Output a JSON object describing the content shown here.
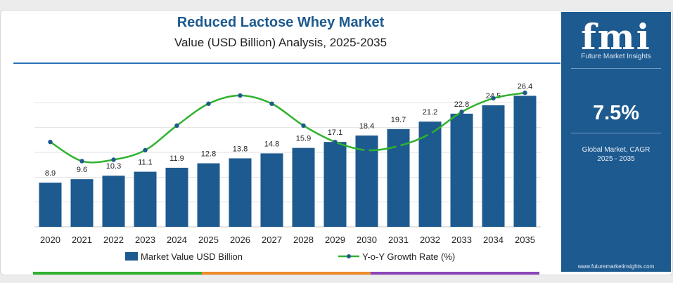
{
  "header": {
    "title": "Reduced Lactose Whey Market",
    "subtitle": "Value (USD Billion) Analysis, 2025-2035"
  },
  "sidebar": {
    "logo_text": "fmi",
    "logo_subtext": "Future Market Insights",
    "cagr_value": "7.5%",
    "cagr_label": "Global Market, CAGR 2025 - 2035",
    "website": "www.futuremarketinsights.com",
    "background_color": "#1d5a8f"
  },
  "chart_data": {
    "type": "bar",
    "title": "Reduced Lactose Whey Market",
    "subtitle": "Value (USD Billion) Analysis, 2025-2035",
    "categories": [
      "2020",
      "2021",
      "2022",
      "2023",
      "2024",
      "2025",
      "2026",
      "2027",
      "2028",
      "2029",
      "2030",
      "2031",
      "2032",
      "2033",
      "2034",
      "2035"
    ],
    "series": [
      {
        "name": "Market Value USD Billion",
        "type": "bar",
        "color": "#1d5a8f",
        "values": [
          8.9,
          9.6,
          10.3,
          11.1,
          11.9,
          12.8,
          13.8,
          14.8,
          15.9,
          17.1,
          18.4,
          19.7,
          21.2,
          22.8,
          24.5,
          26.4
        ],
        "labels": [
          "8.9",
          "9.6",
          "10.3",
          "11.1",
          "11.9",
          "12.8",
          "13.8",
          "14.8",
          "15.9",
          "17.1",
          "18.4",
          "19.7",
          "21.2",
          "22.8",
          "24.5",
          "26.4"
        ]
      },
      {
        "name": "Y-o-Y Growth Rate (%)",
        "type": "line",
        "color": "#2fb22f",
        "values": [
          7.9,
          7.2,
          7.25,
          7.6,
          8.5,
          9.3,
          9.6,
          9.3,
          8.5,
          7.9,
          7.6,
          7.75,
          8.2,
          9.0,
          9.5,
          9.7
        ]
      }
    ],
    "ylim": [
      0,
      30
    ],
    "grid": true,
    "legend_position": "bottom-center"
  },
  "footer": {
    "colors": [
      "#2fb22f",
      "#f08a2a",
      "#8a44b8"
    ]
  }
}
